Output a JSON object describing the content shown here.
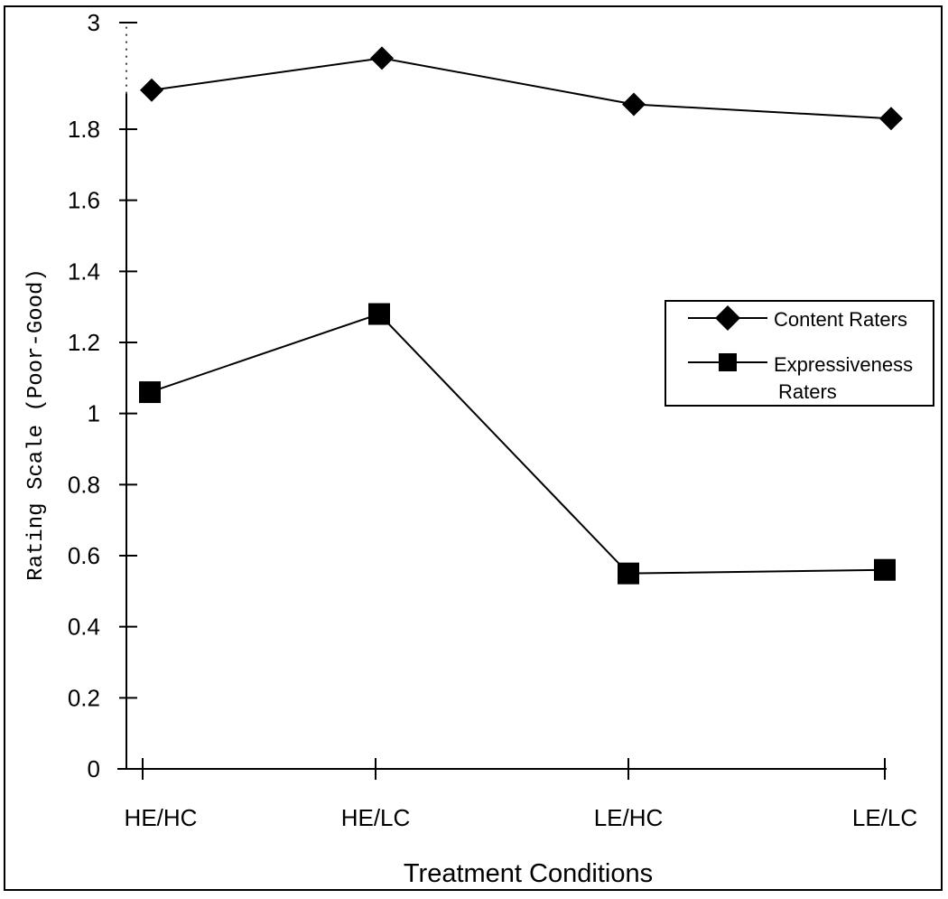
{
  "chart_data": {
    "type": "line",
    "categories": [
      "HE/HC",
      "HE/LC",
      "LE/HC",
      "LE/LC"
    ],
    "series": [
      {
        "name": "Content Raters",
        "marker": "diamond",
        "values": [
          1.91,
          2.0,
          1.87,
          1.83
        ]
      },
      {
        "name": "Expressiveness Raters",
        "name_lines": [
          "Expressiveness",
          "Raters"
        ],
        "marker": "square",
        "values": [
          1.06,
          1.28,
          0.55,
          0.56
        ]
      }
    ],
    "xlabel": "Treatment Conditions",
    "ylabel": "Rating Scale (Poor-Good)",
    "yticks": [
      "0",
      "0.2",
      "0.4",
      "0.6",
      "0.8",
      "1",
      "1.2",
      "1.4",
      "1.6",
      "1.8",
      "3"
    ],
    "ytick_values": [
      0,
      0.2,
      0.4,
      0.6,
      0.8,
      1.0,
      1.2,
      1.4,
      1.6,
      1.8,
      2.1
    ],
    "ylim": [
      0,
      2.1
    ],
    "axis_break": true,
    "grid": false,
    "legend_position": "right",
    "colors": {
      "line": "#000000",
      "marker": "#000000"
    }
  }
}
